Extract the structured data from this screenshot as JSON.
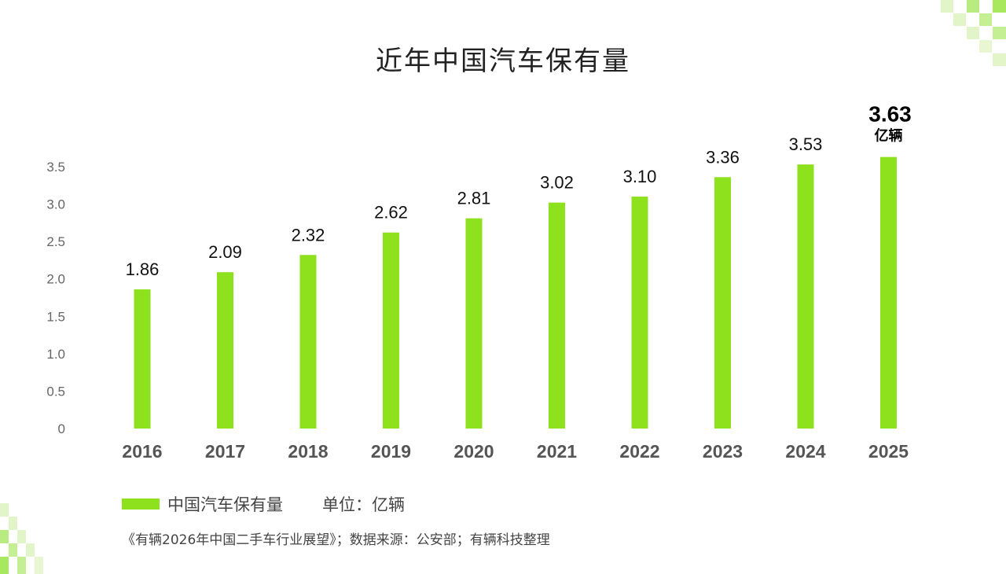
{
  "chart_data": {
    "type": "bar",
    "title": "近年中国汽车保有量",
    "categories": [
      "2016",
      "2017",
      "2018",
      "2019",
      "2020",
      "2021",
      "2022",
      "2023",
      "2024",
      "2025"
    ],
    "series": [
      {
        "name": "中国汽车保有量",
        "values": [
          1.86,
          2.09,
          2.32,
          2.62,
          2.81,
          3.02,
          3.1,
          3.36,
          3.53,
          3.63
        ]
      }
    ],
    "data_labels": [
      "1.86",
      "2.09",
      "2.32",
      "2.62",
      "2.81",
      "3.02",
      "3.10",
      "3.36",
      "3.53",
      "3.63"
    ],
    "highlight_unit": "亿辆",
    "yticks": [
      "0",
      "0.5",
      "1.0",
      "1.5",
      "2.0",
      "2.5",
      "3.0",
      "3.5"
    ],
    "ylim": [
      0,
      3.5
    ],
    "grid": false,
    "legend_placement": "bottom-left",
    "unit_label": "单位：亿辆",
    "bar_color": "#8ee11d"
  },
  "source": "《有辆2026年中国二手车行业展望》；数据来源：公安部；有辆科技整理"
}
